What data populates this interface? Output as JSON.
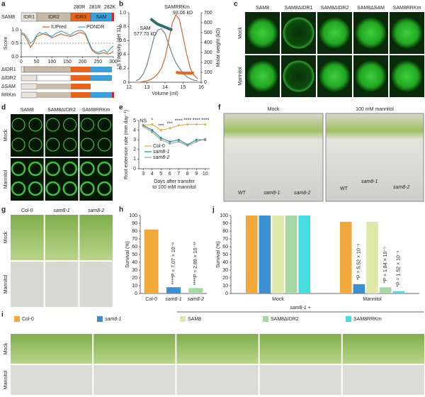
{
  "panels": [
    "a",
    "b",
    "c",
    "d",
    "e",
    "f",
    "g",
    "h",
    "i",
    "j"
  ],
  "a": {
    "construct": "SAM8",
    "domains": [
      "IDR1",
      "IDR2",
      "IDR3",
      "SAM"
    ],
    "mutations": [
      "280R",
      "281R",
      "282K"
    ],
    "deletions": [
      "ΔIDR1",
      "ΔIDR2",
      "ΔSAM",
      "RRKm"
    ]
  },
  "c": {
    "columns": [
      "SAM8",
      "SAM8ΔIDR1",
      "SAM8ΔIDR2",
      "SAM8ΔSAM",
      "SAM8RRKm"
    ],
    "rows": [
      "Mock",
      "Mannitol"
    ]
  },
  "d": {
    "columns": [
      "SAM8",
      "SAM8ΔIDR2",
      "SAM8RRKm"
    ],
    "rows": [
      "Mock",
      "Mannitol"
    ]
  },
  "f": {
    "plates": [
      "Mock",
      "100 mM mannitol"
    ],
    "genotypes": [
      "WT",
      "sam8-1",
      "sam8-2"
    ]
  },
  "g": {
    "columns": [
      "Col-0",
      "sam8-1",
      "sam8-2"
    ],
    "rows": [
      "Mock",
      "Mannitol"
    ]
  },
  "i": {
    "header": "sam8-1 +",
    "rows": [
      "Mock",
      "Mannitol"
    ]
  },
  "chart_data": [
    {
      "type": "line",
      "ylabel": "Score",
      "x": [
        0,
        10,
        20,
        30,
        40,
        50,
        60,
        70,
        80,
        90,
        100,
        110,
        120,
        130,
        140,
        150,
        160,
        170,
        180,
        190,
        200,
        210,
        220,
        230,
        240,
        250,
        260,
        270,
        280,
        290,
        300
      ],
      "xlim": [
        0,
        300
      ],
      "xticks": [
        0,
        50,
        100,
        150,
        200,
        250,
        300
      ],
      "ylim": [
        0,
        1
      ],
      "yticks": [
        {
          "value": 0,
          "label": "0.0"
        },
        {
          "value": 0.5,
          "label": "0.5"
        },
        {
          "value": 1,
          "label": "1.0"
        }
      ],
      "threshold": 0.5,
      "series": [
        {
          "name": "IUPred",
          "color": "#d9541e",
          "values": [
            0.85,
            0.8,
            0.6,
            0.35,
            0.5,
            0.75,
            0.8,
            0.85,
            0.82,
            0.78,
            0.7,
            0.75,
            0.8,
            0.85,
            0.8,
            0.78,
            0.75,
            0.8,
            0.85,
            0.9,
            0.88,
            0.8,
            0.5,
            0.25,
            0.15,
            0.1,
            0.12,
            0.15,
            0.1,
            0.12,
            0.2
          ]
        },
        {
          "name": "PONDR",
          "color": "#3aa7b8",
          "values": [
            0.9,
            0.85,
            0.7,
            0.5,
            0.6,
            0.8,
            0.9,
            0.85,
            0.9,
            0.8,
            0.75,
            0.85,
            0.9,
            0.95,
            0.9,
            0.85,
            0.8,
            0.9,
            0.95,
            0.98,
            0.95,
            0.85,
            0.55,
            0.3,
            0.2,
            0.15,
            0.2,
            0.25,
            0.15,
            0.3,
            0.4
          ]
        }
      ]
    },
    {
      "type": "line",
      "xlabel": "Volume (ml)",
      "ylabel": "LS intensity (det 11)",
      "y2label": "Molar weight (kD)",
      "x": [
        12.4,
        12.6,
        12.8,
        13.0,
        13.2,
        13.4,
        13.6,
        13.8,
        14.0,
        14.2,
        14.4,
        14.6,
        14.8,
        15.0,
        15.2,
        15.4,
        15.6,
        15.8
      ],
      "xlim": [
        12,
        16
      ],
      "xticks": [
        12,
        13,
        14,
        15,
        16
      ],
      "ylim": [
        0,
        1
      ],
      "yticks": [
        0,
        0.2,
        0.4,
        0.6,
        0.8,
        {
          "value": 1,
          "label": "1.0"
        }
      ],
      "y2lim": [
        0,
        700
      ],
      "y2ticks": [
        0,
        100,
        200,
        300,
        400,
        500,
        600,
        700
      ],
      "annotations": [
        "SAM",
        "577.70 kD",
        "SAMRRKm",
        "93.06 kD"
      ],
      "series": [
        {
          "name": "SAM",
          "color": "#5d7b8a",
          "values": [
            0.02,
            0.05,
            0.12,
            0.25,
            0.45,
            0.65,
            0.75,
            0.77,
            0.7,
            0.55,
            0.4,
            0.28,
            0.2,
            0.13,
            0.08,
            0.05,
            0.03,
            0.02
          ]
        },
        {
          "name": "SAMRRKm",
          "color": "#d9541e",
          "values": [
            0,
            0,
            0.01,
            0.02,
            0.04,
            0.07,
            0.12,
            0.2,
            0.35,
            0.6,
            0.85,
            0.97,
            0.9,
            0.65,
            0.4,
            0.2,
            0.1,
            0.05
          ]
        },
        {
          "name": "SAM",
          "color": "#2f6e6e",
          "axis": "y2",
          "values": [
            null,
            null,
            null,
            null,
            640,
            610,
            585,
            570,
            555,
            540,
            525,
            null,
            null,
            null,
            null,
            null,
            null,
            null
          ]
        },
        {
          "name": "SAMRRKm",
          "color": "#e8641c",
          "axis": "y2",
          "values": [
            null,
            null,
            null,
            null,
            null,
            null,
            null,
            null,
            null,
            null,
            null,
            100,
            95,
            93,
            92,
            92,
            92,
            null
          ]
        }
      ]
    },
    {
      "type": "line",
      "xlabel": [
        "Days after transfer",
        "to 100 mM mannitol"
      ],
      "ylabel": "Root extension rate (mm day⁻¹)",
      "x": [
        3,
        4,
        5,
        6,
        7,
        8,
        9,
        10
      ],
      "xlim": [
        2.5,
        10.5
      ],
      "xticks": [
        3,
        4,
        5,
        6,
        7,
        8,
        9,
        10
      ],
      "ylim": [
        0,
        5
      ],
      "yticks": [
        0,
        1,
        2,
        3,
        4,
        5
      ],
      "markers": true,
      "significance": [
        "NS",
        "*",
        "***",
        "***",
        "****",
        "****",
        "****",
        "****"
      ],
      "series": [
        {
          "name": "Col-0",
          "color": "#f2a93b",
          "values": [
            4.5,
            4.6,
            4.0,
            4.2,
            4.5,
            4.6,
            4.6,
            4.6
          ]
        },
        {
          "name": "sam8-1",
          "color": "#2a8c8c",
          "values": [
            4.5,
            4.0,
            3.2,
            2.8,
            3.0,
            2.5,
            3.0,
            3.0
          ]
        },
        {
          "name": "sam8-2",
          "color": "#999999",
          "values": [
            4.4,
            3.8,
            3.0,
            2.6,
            2.8,
            2.4,
            2.8,
            3.1
          ]
        }
      ]
    },
    {
      "type": "bar",
      "ylabel": "Survival (%)",
      "categories": [
        "Col-0",
        "sam8-1",
        "sam8-2"
      ],
      "values": [
        82,
        8,
        7
      ],
      "colors": [
        "#f2a93b",
        "#3c8fd0",
        "#a8d8a8"
      ],
      "ylim": [
        0,
        100
      ],
      "yticks": [
        0,
        10,
        20,
        30,
        40,
        50,
        60,
        70,
        80,
        90,
        100
      ],
      "annotations": [
        null,
        "****P = 7.07 × 10⁻⁸",
        "****P = 2.89 × 10⁻¹⁰"
      ]
    },
    {
      "type": "grouped_bar",
      "ylabel": "Survival (%)",
      "categories": [
        "Mock",
        "Mannitol"
      ],
      "ylim": [
        0,
        100
      ],
      "yticks": [
        0,
        10,
        20,
        30,
        40,
        50,
        60,
        70,
        80,
        90,
        100
      ],
      "annotations": [
        null,
        "*P = 5.52 × 10⁻⁵",
        null,
        "*P = 1.84 × 10⁻⁵",
        "*P = 1.52 × 10⁻⁵"
      ],
      "series": [
        {
          "name": "Col-0",
          "color": "#f2a93b",
          "values": [
            100,
            92
          ]
        },
        {
          "name": "sam8-1",
          "color": "#3c8fd0",
          "values": [
            100,
            12
          ]
        },
        {
          "name": "SAM8",
          "color": "#dfe8a8",
          "values": [
            100,
            92
          ]
        },
        {
          "name": "SAM8ΔIDR2",
          "color": "#a6d6a6",
          "values": [
            100,
            8
          ]
        },
        {
          "name": "SAM8RRKm",
          "color": "#44dede",
          "values": [
            100,
            3
          ]
        }
      ]
    }
  ]
}
